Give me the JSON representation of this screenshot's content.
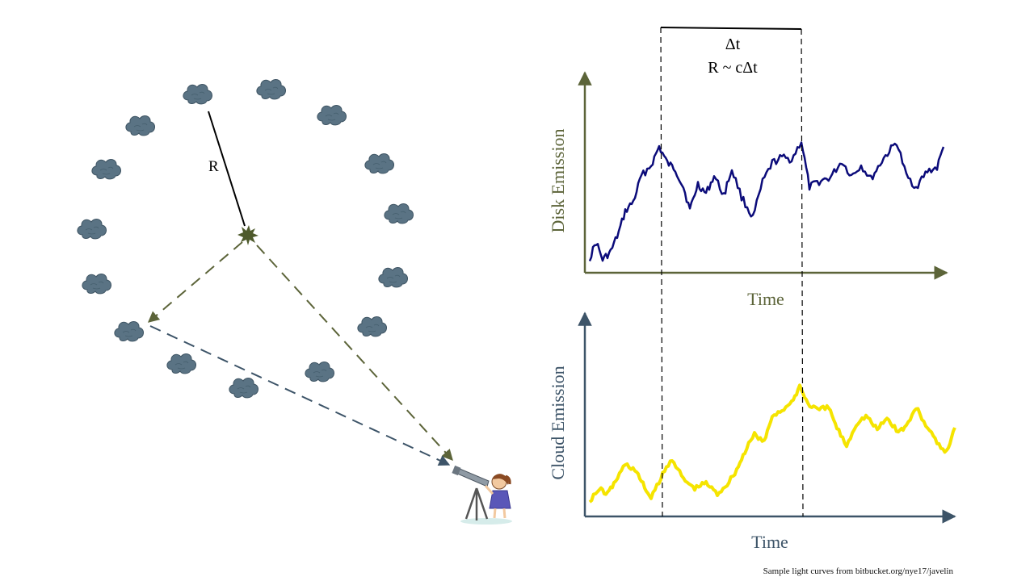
{
  "diagram": {
    "radius_label": "R",
    "delta_t_label": "Δt",
    "relation_label": "R ~ cΔt",
    "colors": {
      "cloud": "#5a7384",
      "cloud_outline": "#3f5564",
      "source_arrow": "#5c6439",
      "cloud_arrow": "#3d5468",
      "disk_axis": "#5c6439",
      "cloud_axis": "#3d5468",
      "disk_curve": "#0b0b7a",
      "cloud_curve": "#f5e400"
    }
  },
  "top_plot": {
    "ylabel": "Disk Emission",
    "xlabel": "Time"
  },
  "bottom_plot": {
    "ylabel": "Cloud Emission",
    "xlabel": "Time"
  },
  "credit": "Sample light curves from bitbucket.org/nye17/javelin"
}
